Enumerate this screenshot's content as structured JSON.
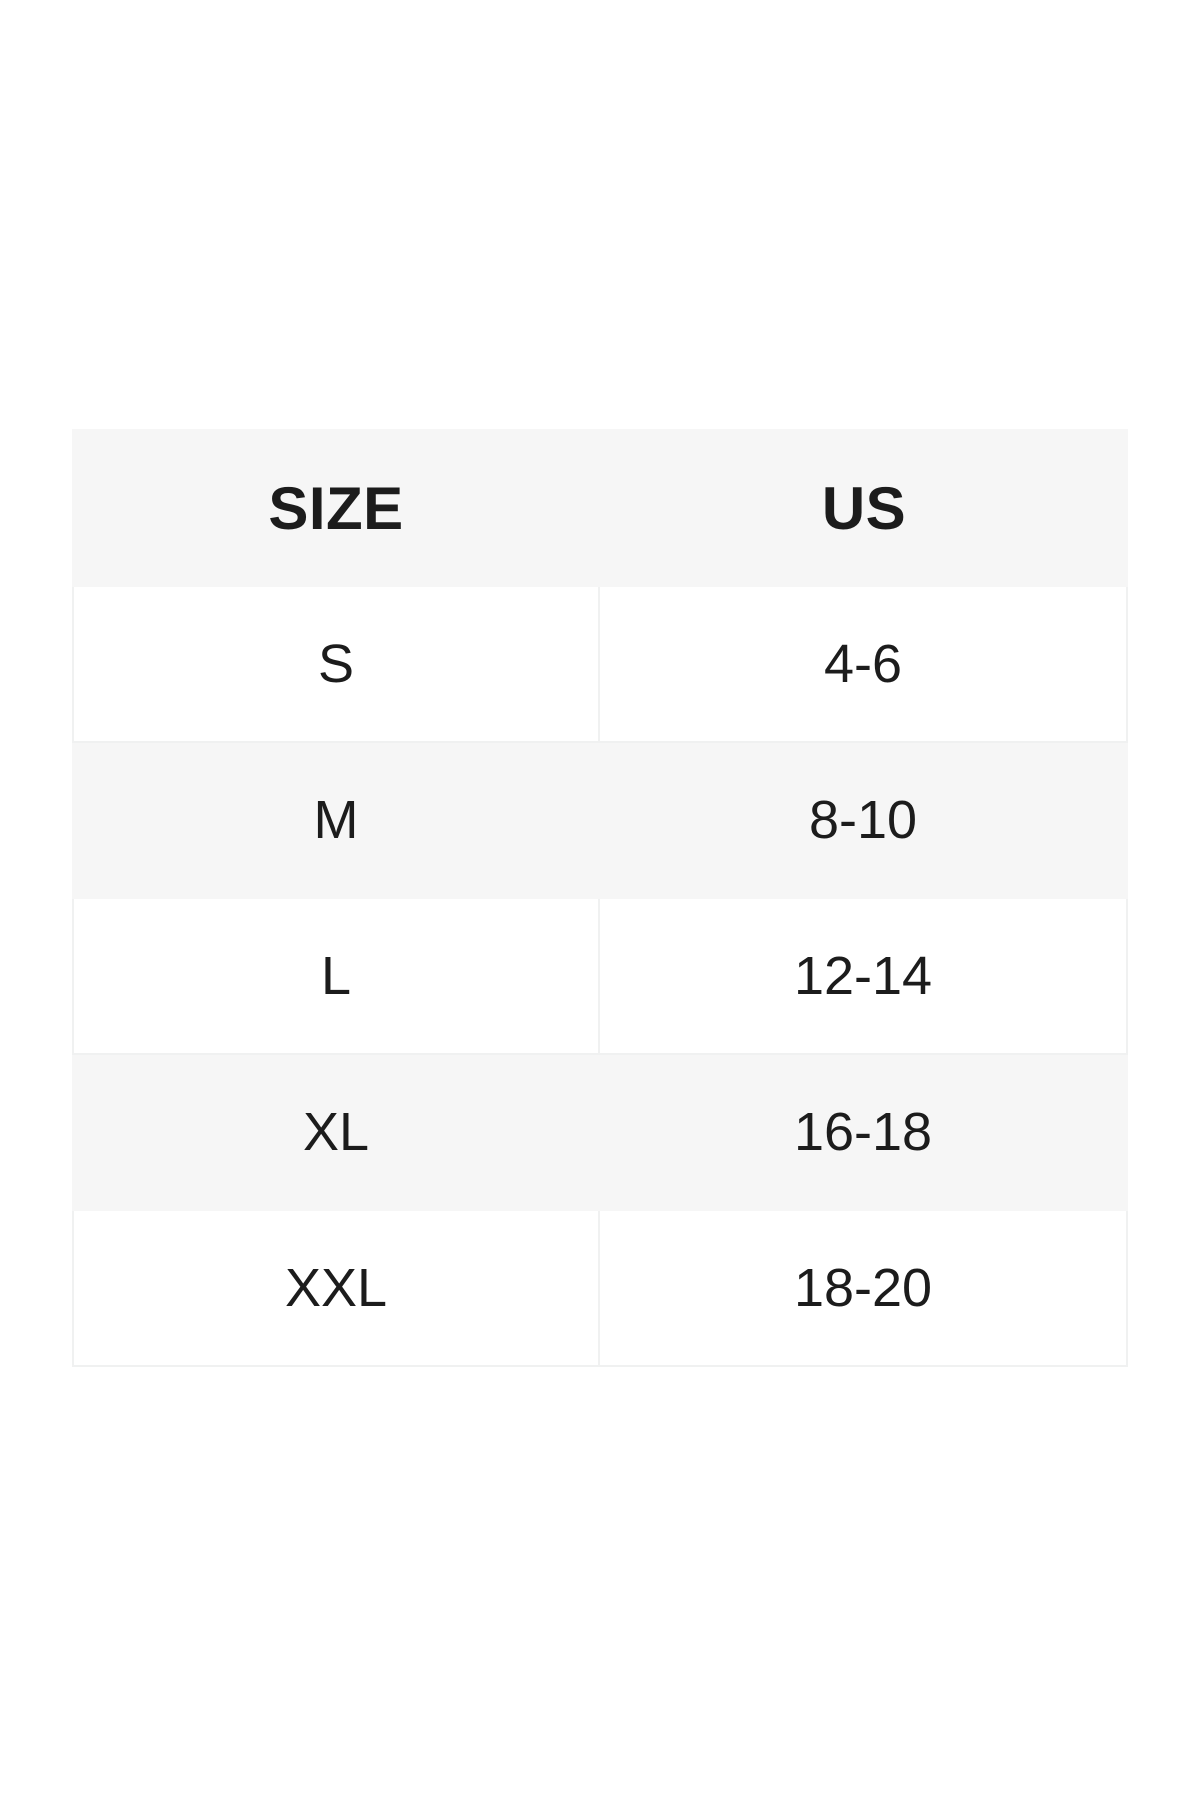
{
  "table": {
    "columns": [
      {
        "key": "size",
        "label": "SIZE"
      },
      {
        "key": "us",
        "label": "US"
      }
    ],
    "rows": [
      {
        "size": "S",
        "us": "4-6"
      },
      {
        "size": "M",
        "us": "8-10"
      },
      {
        "size": "L",
        "us": "12-14"
      },
      {
        "size": "XL",
        "us": "16-18"
      },
      {
        "size": "XXL",
        "us": "18-20"
      }
    ],
    "colors": {
      "header_background": "#f6f6f6",
      "alt_row_background": "#f6f6f6",
      "row_background": "#ffffff",
      "border": "#f0f1f1",
      "text": "#1c1c1c"
    }
  }
}
